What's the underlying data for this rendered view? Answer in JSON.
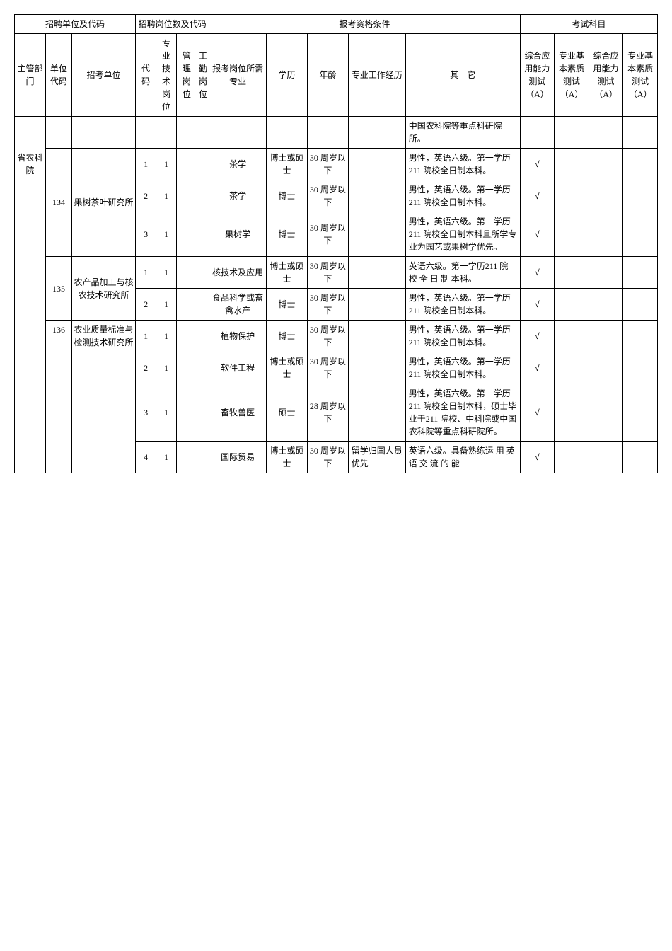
{
  "borderColor": "#000000",
  "bgColor": "#ffffff",
  "fontSize": 12,
  "headers": {
    "group1": "招聘单位及代码",
    "group2": "招聘岗位数及代码",
    "group3": "报考资格条件",
    "group4": "考试科目",
    "dept": "主管部门",
    "unitCode": "单位代码",
    "unitName": "招考单位",
    "code": "代码",
    "tech": "专业技术岗位",
    "mgmt": "管理岗位",
    "worker": "工勤岗位",
    "major": "报考岗位所需专业",
    "edu": "学历",
    "age": "年龄",
    "exp": "专业工作经历",
    "other": "其　它",
    "testA": "综合应用能力测试（A）",
    "testB": "专业基本素质测试（A）",
    "testC": "综合应用能力测试（A）",
    "testD": "专业基本素质测试（A）"
  },
  "dept": "省农科院",
  "rows": [
    {
      "headerFragment": "中国农科院等重点科研院所。"
    },
    {
      "unitCode": "134",
      "unitName": "果树茶叶研究所",
      "unitRowspan": 3,
      "code": "1",
      "tech": "1",
      "major": "茶学",
      "edu": "博士或硕士",
      "age": "30 周岁以下",
      "other": "男性，英语六级。第一学历 211 院校全日制本科。",
      "testA": "√"
    },
    {
      "code": "2",
      "tech": "1",
      "major": "茶学",
      "edu": "博士",
      "age": "30 周岁以下",
      "other": "男性，英语六级。第一学历 211 院校全日制本科。",
      "testA": "√"
    },
    {
      "code": "3",
      "tech": "1",
      "major": "果树学",
      "edu": "博士",
      "age": "30 周岁以下",
      "other": "男性，英语六级。第一学历 211 院校全日制本科且所学专业为园艺或果树学优先。",
      "testA": "√"
    },
    {
      "unitCode": "135",
      "unitName": "农产品加工与核农技术研究所",
      "unitRowspan": 2,
      "code": "1",
      "tech": "1",
      "major": "核技术及应用",
      "edu": "博士或硕士",
      "age": "30 周岁以下",
      "other": "英语六级。第一学历211 院 校 全 日 制 本科。",
      "testA": "√"
    },
    {
      "code": "2",
      "tech": "1",
      "major": "食品科学或畜禽水产",
      "edu": "博士",
      "age": "30 周岁以下",
      "other": "男性，英语六级。第一学历 211 院校全日制本科。",
      "testA": "√"
    },
    {
      "unitCode": "136",
      "unitName": "农业质量标准与检测技术研究所",
      "unitRowspan": 4,
      "code": "1",
      "tech": "1",
      "major": "植物保护",
      "edu": "博士",
      "age": "30 周岁以下",
      "other": "男性，英语六级。第一学历 211 院校全日制本科。",
      "testA": "√"
    },
    {
      "code": "2",
      "tech": "1",
      "major": "软件工程",
      "edu": "博士或硕士",
      "age": "30 周岁以下",
      "other": "男性，英语六级。第一学历 211 院校全日制本科。",
      "testA": "√"
    },
    {
      "code": "3",
      "tech": "1",
      "major": "畜牧兽医",
      "edu": "硕士",
      "age": "28 周岁以下",
      "other": "男性，英语六级。第一学历 211 院校全日制本科，硕士毕业于211 院校、中科院或中国农科院等重点科研院所。",
      "testA": "√"
    },
    {
      "code": "4",
      "tech": "1",
      "major": "国际贸易",
      "edu": "博士或硕士",
      "age": "30 周岁以下",
      "exp": "留学归国人员优先",
      "other": "英语六级。具备熟练运 用 英 语 交 流 的 能",
      "testA": "√"
    }
  ]
}
